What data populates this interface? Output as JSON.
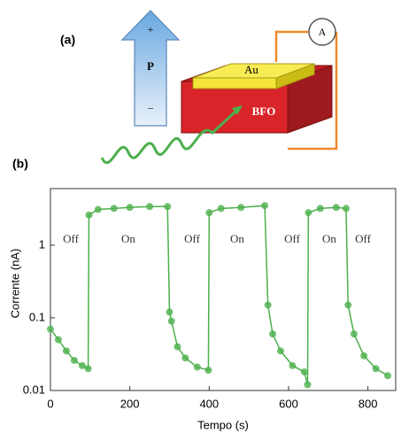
{
  "diagram": {
    "label": "(a)",
    "plus": "+",
    "polarization": "P",
    "minus": "–",
    "top_electrode": "Au",
    "film": "BFO",
    "ammeter": "A"
  },
  "chart_data": {
    "type": "line",
    "panel_label": "(b)",
    "xlabel": "Tempo (s)",
    "ylabel": "Corrente (nA)",
    "log_y": true,
    "color": "#4cb04c",
    "x": [
      0,
      20,
      40,
      60,
      80,
      95,
      97,
      120,
      160,
      200,
      250,
      295,
      300,
      305,
      320,
      340,
      370,
      398,
      400,
      430,
      480,
      540,
      548,
      560,
      580,
      610,
      640,
      648,
      650,
      680,
      720,
      745,
      750,
      765,
      790,
      820,
      850
    ],
    "values": [
      0.07,
      0.05,
      0.035,
      0.026,
      0.022,
      0.02,
      2.6,
      3.1,
      3.2,
      3.3,
      3.4,
      3.4,
      0.12,
      0.09,
      0.04,
      0.028,
      0.021,
      0.019,
      2.8,
      3.2,
      3.3,
      3.5,
      0.15,
      0.06,
      0.035,
      0.022,
      0.018,
      0.012,
      2.8,
      3.2,
      3.3,
      3.2,
      0.15,
      0.06,
      0.03,
      0.02,
      0.016
    ],
    "xlim": [
      0,
      870
    ],
    "ylim": [
      0.01,
      6
    ],
    "xticks": [
      0,
      200,
      400,
      600,
      800
    ],
    "yticks": [
      {
        "value": 0.01,
        "label": "0.01"
      },
      {
        "value": 0.1,
        "label": "0.1"
      },
      1
    ],
    "annotations": [
      "Off",
      "On",
      "Off",
      "On",
      "Off",
      "On",
      "Off"
    ]
  }
}
